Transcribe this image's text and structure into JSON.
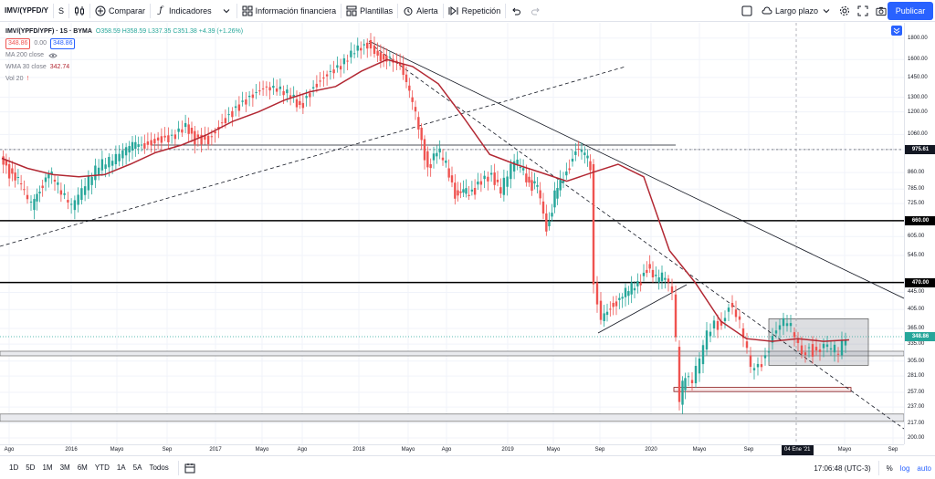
{
  "toolbar": {
    "symbol": "IMV/(YPFD/Y",
    "interval": "S",
    "compare_label": "Comparar",
    "indicators_label": "Indicadores",
    "financials_label": "Información financiera",
    "templates_label": "Plantillas",
    "alert_label": "Alerta",
    "replay_label": "Repetición",
    "layout_label": "Largo plazo",
    "publish_label": "Publicar"
  },
  "legend": {
    "title": "IMV/(YPFD/YPF) · 1S · BYMA",
    "ohlc": "O358.59 H358.59 L337.35 C351.38 +4.39 (+1.26%)",
    "sell_price": "348.86",
    "spread": "0.00",
    "buy_price": "348.86",
    "ma_label": "MA 200 close",
    "wma_label": "WMA 30 close",
    "wma_value": "342.74",
    "vol_label": "Vol 20"
  },
  "price_axis": {
    "ticks": [
      "1800.00",
      "1600.00",
      "1450.00",
      "1300.00",
      "1200.00",
      "1060.00",
      "975.61",
      "860.00",
      "785.00",
      "725.00",
      "660.00",
      "605.00",
      "545.00",
      "470.00",
      "445.00",
      "405.00",
      "365.00",
      "335.00",
      "305.00",
      "281.00",
      "257.00",
      "237.00",
      "217.00",
      "200.00"
    ],
    "tags": [
      {
        "value": "975.61",
        "color": "#131722"
      },
      {
        "value": "660.00",
        "color": "#000000"
      },
      {
        "value": "470.00",
        "color": "#000000"
      },
      {
        "value": "348.86",
        "color": "#26a69a"
      }
    ]
  },
  "time_axis": {
    "ticks": [
      "Ago",
      "2016",
      "Mayo",
      "Sep",
      "2017",
      "Mayo",
      "Ago",
      "2018",
      "Mayo",
      "Ago",
      "2019",
      "Mayo",
      "Sep",
      "2020",
      "Mayo",
      "Sep",
      "Mayo",
      "Sep"
    ],
    "cursor_label": "04 Ene '21"
  },
  "bottom_bar": {
    "ranges": [
      "1D",
      "5D",
      "1M",
      "3M",
      "6M",
      "YTD",
      "1A",
      "5A",
      "Todos"
    ],
    "clock": "17:06:48 (UTC-3)",
    "percent_label": "%",
    "log_label": "log",
    "auto_label": "auto"
  },
  "chart_data": {
    "type": "candlestick",
    "title": "IMV/(YPFD/YPF) · 1S · BYMA",
    "scale": "log",
    "ylim": [
      200,
      1900
    ],
    "x_start": "2015-08",
    "x_end": "2021-09",
    "wma_30": [
      930,
      880,
      850,
      840,
      850,
      900,
      960,
      1000,
      1060,
      1140,
      1200,
      1280,
      1340,
      1380,
      1500,
      1600,
      1540,
      1400,
      1160,
      950,
      900,
      860,
      820,
      860,
      900,
      840,
      560,
      470,
      380,
      345,
      340,
      345,
      340,
      342.74
    ],
    "horizontal_levels": [
      975.61,
      660,
      470,
      320,
      257
    ],
    "last_close": 348.86,
    "colors": {
      "up": "#26a69a",
      "down": "#ef5350",
      "wma": "#b22833"
    }
  }
}
